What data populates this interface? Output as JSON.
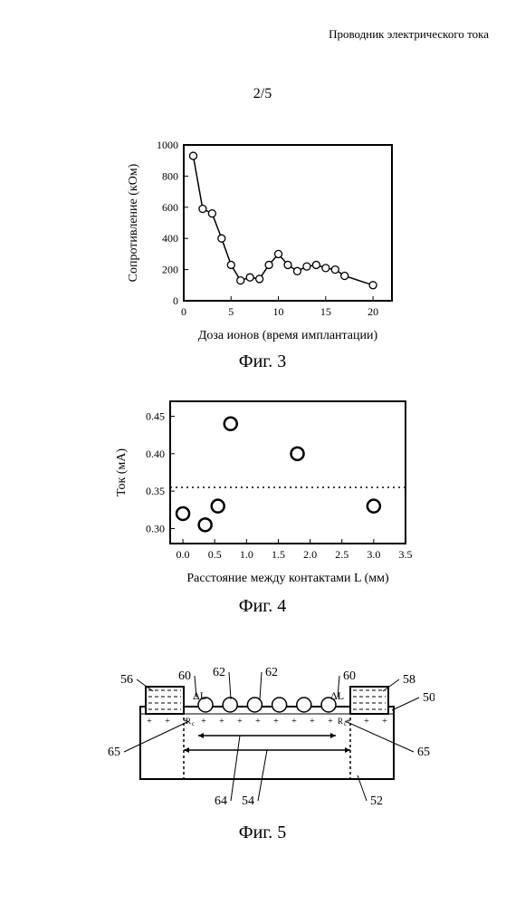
{
  "header": {
    "title": "Проводник электрического тока"
  },
  "pageNum": "2/5",
  "fig3": {
    "type": "line-scatter",
    "caption": "Фиг. 3",
    "xlabel": "Доза ионов (время имплантации)",
    "ylabel": "Сопротивление (кОм)",
    "xlim": [
      0,
      22
    ],
    "ylim": [
      0,
      1000
    ],
    "xtick_step": 5,
    "ytick_step": 200,
    "x": [
      1,
      2,
      3,
      4,
      5,
      6,
      7,
      8,
      9,
      10,
      11,
      12,
      13,
      14,
      15,
      16,
      17,
      20
    ],
    "y": [
      930,
      590,
      560,
      400,
      230,
      130,
      150,
      140,
      230,
      300,
      230,
      190,
      220,
      230,
      210,
      200,
      160,
      100
    ],
    "marker": "circle-open",
    "marker_size": 4,
    "marker_color": "#000000",
    "line_width": 1.5,
    "line_color": "#000000",
    "border_color": "#000000",
    "background_color": "#ffffff",
    "axis_fontsize": 14,
    "tick_fontsize": 12
  },
  "fig4": {
    "type": "scatter",
    "caption": "Фиг. 4",
    "xlabel": "Расстояние между контактами L (мм)",
    "ylabel": "Ток (мА)",
    "xlim": [
      -0.2,
      3.5
    ],
    "ylim": [
      0.28,
      0.47
    ],
    "xticks": [
      0.0,
      0.5,
      1.0,
      1.5,
      2.0,
      2.5,
      3.0,
      3.5
    ],
    "yticks": [
      0.3,
      0.35,
      0.4,
      0.45
    ],
    "x": [
      0.0,
      0.35,
      0.55,
      0.75,
      1.8,
      3.0
    ],
    "y": [
      0.32,
      0.305,
      0.33,
      0.44,
      0.4,
      0.33
    ],
    "hline_y": 0.355,
    "hline_style": "dotted",
    "hline_color": "#000000",
    "marker": "circle-open",
    "marker_size": 7,
    "marker_color": "#000000",
    "marker_stroke": 2.5,
    "border_color": "#000000",
    "background_color": "#ffffff",
    "axis_fontsize": 14,
    "tick_fontsize": 12
  },
  "fig5": {
    "type": "schematic",
    "caption": "Фиг. 5",
    "labels": {
      "l56": "56",
      "l60a": "60",
      "l62a": "62",
      "l62b": "62",
      "l60b": "60",
      "l58": "58",
      "l50": "50",
      "l65a": "65",
      "l64": "64",
      "l54": "54",
      "l65b": "65",
      "l52": "52",
      "dLa": "ΔL",
      "dLb": "ΔL",
      "Rca": "R",
      "Rcb": "R",
      "Rcsub": "c"
    },
    "colors": {
      "stroke": "#000000",
      "fill": "#ffffff"
    },
    "line_width": 2
  }
}
